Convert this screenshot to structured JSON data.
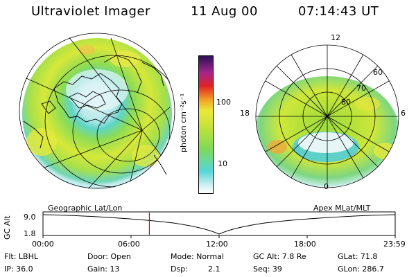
{
  "header": {
    "title": "Ultraviolet Imager",
    "date": "11 Aug 00",
    "time": "07:14:43 UT"
  },
  "colorbar": {
    "label": "photon cm⁻²s⁻¹",
    "ticks": [
      "100",
      "10"
    ],
    "scale": "log",
    "colors": [
      "#ffffff",
      "#55d6d8",
      "#7ad860",
      "#e9e93a",
      "#f3a326",
      "#e22424",
      "#a3258e",
      "#2b1155"
    ]
  },
  "left_map": {
    "projection": "Geographic Lat/Lon"
  },
  "right_map": {
    "coords": "Apex MLat/MLT",
    "mlt_labels": {
      "top": "12",
      "left": "18",
      "right": "6",
      "bottom": "0"
    },
    "lat_labels": [
      "60",
      "70",
      "80"
    ]
  },
  "altitude_plot": {
    "ylabel": "GC Alt",
    "yticks": [
      "9.0",
      "1.8"
    ],
    "xticks": [
      "00:00",
      "06:00",
      "12:00",
      "18:00",
      "23:59"
    ],
    "current_time_fraction": 0.302
  },
  "info": {
    "filter": "Flt: LBHL",
    "ip": "IP: 36.0",
    "door": "Door: Open",
    "gain": "Gain: 13",
    "mode": "Mode: Normal",
    "dsp_label": "Dsp:",
    "dsp_value": "2.1",
    "gc_alt": "GC Alt: 7.8 Re",
    "seq": "Seq: 39",
    "glat": "GLat: 71.8",
    "glon": "GLon: 286.7"
  }
}
